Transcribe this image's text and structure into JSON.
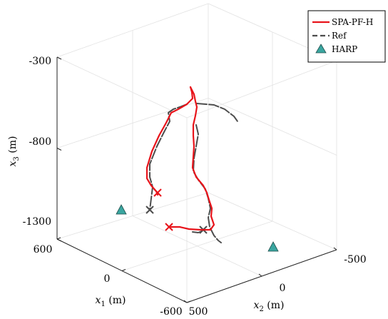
{
  "chart_data": {
    "type": "line3d",
    "axes": {
      "x1": {
        "label_var": "x",
        "label_sub": "1",
        "label_unit": " (m)",
        "ticks": [
          "600",
          "0",
          "-600"
        ]
      },
      "x2": {
        "label_var": "x",
        "label_sub": "2",
        "label_unit": " (m)",
        "ticks": [
          "500",
          "0",
          "-500"
        ]
      },
      "x3": {
        "label_var": "x",
        "label_sub": "3",
        "label_unit": " (m)",
        "ticks": [
          "-300",
          "-800",
          "-1300"
        ]
      }
    },
    "legend": {
      "position": "top-right",
      "entries": [
        {
          "name": "SPA-PF-H",
          "style": "solid",
          "color": "#e8141b"
        },
        {
          "name": "Ref",
          "style": "dashed",
          "color": "#4d4d4d"
        },
        {
          "name": "HARP",
          "style": "triangle",
          "color": "#3aa6a0"
        }
      ]
    },
    "series": [
      {
        "name": "SPA-PF-H",
        "color": "#e8141b",
        "segments": [
          {
            "points": [
              [
                267,
                122
              ],
              [
                269,
                129
              ],
              [
                270,
                138
              ],
              [
                262,
                146
              ],
              [
                250,
                153
              ],
              [
                240,
                158
              ],
              [
                233,
                172
              ],
              [
                223,
                190
              ],
              [
                213,
                212
              ],
              [
                206,
                235
              ],
              [
                206,
                250
              ],
              [
                212,
                260
              ],
              [
                219,
                268
              ],
              [
                221,
                273
              ]
            ]
          },
          {
            "points": [
              [
                267,
                122
              ],
              [
                272,
                132
              ],
              [
                274,
                142
              ],
              [
                276,
                150
              ],
              [
                274,
                162
              ],
              [
                271,
                175
              ],
              [
                271,
                190
              ],
              [
                272,
                205
              ],
              [
                271,
                220
              ],
              [
                270,
                235
              ],
              [
                275,
                248
              ],
              [
                285,
                260
              ],
              [
                290,
                270
              ],
              [
                293,
                280
              ],
              [
                297,
                292
              ],
              [
                296,
                303
              ],
              [
                300,
                315
              ],
              [
                295,
                322
              ],
              [
                281,
                322
              ],
              [
                265,
                321
              ],
              [
                252,
                318
              ],
              [
                238,
                318
              ]
            ]
          }
        ],
        "end_markers": [
          [
            221,
            270
          ],
          [
            237,
            318
          ]
        ]
      },
      {
        "name": "Ref",
        "color": "#4d4d4d",
        "segments": [
          {
            "points": [
              [
                262,
                146
              ],
              [
                252,
                150
              ],
              [
                243,
                153
              ],
              [
                236,
                158
              ],
              [
                238,
                170
              ],
              [
                230,
                185
              ],
              [
                220,
                205
              ],
              [
                210,
                230
              ],
              [
                210,
                248
              ],
              [
                214,
                262
              ],
              [
                212,
                278
              ],
              [
                210,
                294
              ]
            ]
          },
          {
            "points": [
              [
                276,
                145
              ],
              [
                300,
                147
              ],
              [
                315,
                153
              ],
              [
                328,
                163
              ],
              [
                333,
                170
              ]
            ]
          },
          {
            "points": [
              [
                275,
                175
              ],
              [
                278,
                188
              ],
              [
                275,
                205
              ],
              [
                272,
                222
              ],
              [
                271,
                240
              ],
              [
                278,
                252
              ],
              [
                288,
                265
              ],
              [
                292,
                278
              ],
              [
                295,
                292
              ],
              [
                292,
                305
              ],
              [
                294,
                318
              ],
              [
                300,
                330
              ],
              [
                306,
                337
              ],
              [
                310,
                340
              ]
            ]
          },
          {
            "points": [
              [
                270,
                325
              ],
              [
                278,
                326
              ],
              [
                285,
                323
              ]
            ]
          }
        ],
        "end_markers": [
          [
            210,
            294
          ],
          [
            285,
            322
          ]
        ]
      }
    ],
    "harp": [
      [
        170,
        294
      ],
      [
        383,
        346
      ]
    ]
  }
}
